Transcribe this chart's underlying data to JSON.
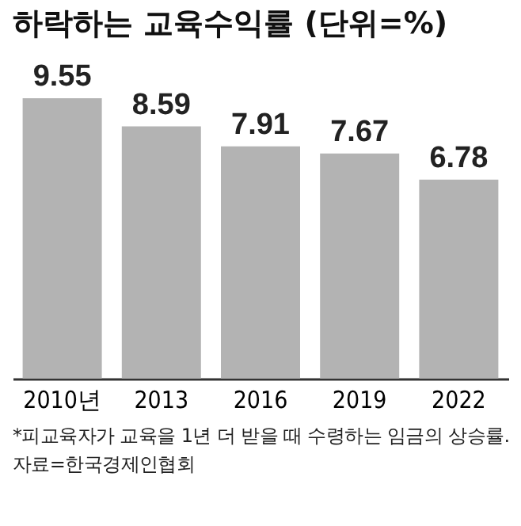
{
  "chart_data": {
    "type": "bar",
    "title": "하락하는 교육수익률 (단위=%)",
    "categories": [
      "2010년",
      "2013",
      "2016",
      "2019",
      "2022"
    ],
    "values": [
      9.55,
      8.59,
      7.91,
      7.67,
      6.78
    ],
    "color": "#b3b3b3",
    "data_labels": true,
    "grid": false,
    "annotations": [
      "*피교육자가 교육을 1년 더 받을 때 수령하는 임금의 상승률.",
      "자료=한국경제인협회"
    ]
  }
}
